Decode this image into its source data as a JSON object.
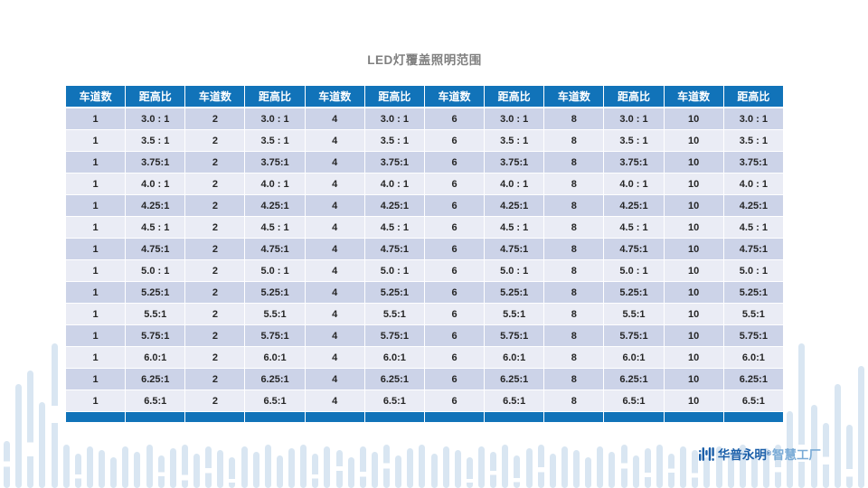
{
  "title": "LED灯覆盖照明范围",
  "table": {
    "lane_header": "车道数",
    "ratio_header": "距高比",
    "lane_counts": [
      "1",
      "2",
      "4",
      "6",
      "8",
      "10"
    ],
    "ratios": [
      "3.0 : 1",
      "3.5 : 1",
      "3.75:1",
      "4.0 : 1",
      "4.25:1",
      "4.5 : 1",
      "4.75:1",
      "5.0 : 1",
      "5.25:1",
      "5.5:1",
      "5.75:1",
      "6.0:1",
      "6.25:1",
      "6.5:1"
    ]
  },
  "footer": {
    "brand_name": "华普永明",
    "brand_mark": "®",
    "brand_suffix": "智慧工厂"
  },
  "colors": {
    "header_blue": "#1173b9",
    "band_odd": "#ccd3e8",
    "band_even": "#eaecf5",
    "title_gray": "#7f7f7f",
    "brand_dark_blue": "#1b5fa9",
    "brand_light_blue": "#7aabd6",
    "decor_light_blue": "#d9e6f2"
  }
}
